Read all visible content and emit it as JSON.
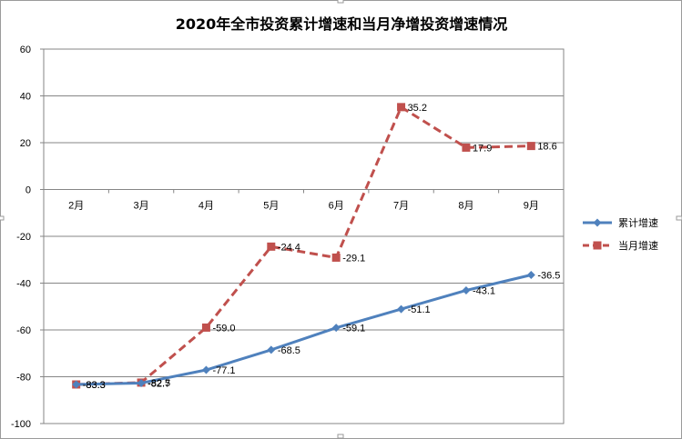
{
  "chart_data": {
    "type": "line",
    "title": "2020年全市投资累计增速和当月净增投资增速情况",
    "categories": [
      "2月",
      "3月",
      "4月",
      "5月",
      "6月",
      "7月",
      "8月",
      "9月"
    ],
    "ylim": [
      -100,
      60
    ],
    "yticks": [
      -100,
      -80,
      -60,
      -40,
      -20,
      0,
      20,
      40,
      60
    ],
    "grid": true,
    "legend_position": "right",
    "series": [
      {
        "name": "累计增速",
        "values": [
          -83.3,
          -82.7,
          -77.1,
          -68.5,
          -59.1,
          -51.1,
          -43.1,
          -36.5
        ],
        "labels": [
          "-83.3",
          "-82.7",
          "-77.1",
          "-68.5",
          "-59.1",
          "-51.1",
          "-43.1",
          "-36.5"
        ],
        "color": "#4f81bd",
        "style": "solid",
        "marker": "diamond"
      },
      {
        "name": "当月增速",
        "values": [
          -83.3,
          -82.5,
          -59.0,
          -24.4,
          -29.1,
          35.2,
          17.9,
          18.6
        ],
        "labels": [
          "-83.3",
          "-82.5",
          "-59.0",
          "-24.4",
          "-29.1",
          "35.2",
          "17.9",
          "18.6"
        ],
        "color": "#c0504d",
        "style": "dashed",
        "marker": "square"
      }
    ]
  }
}
